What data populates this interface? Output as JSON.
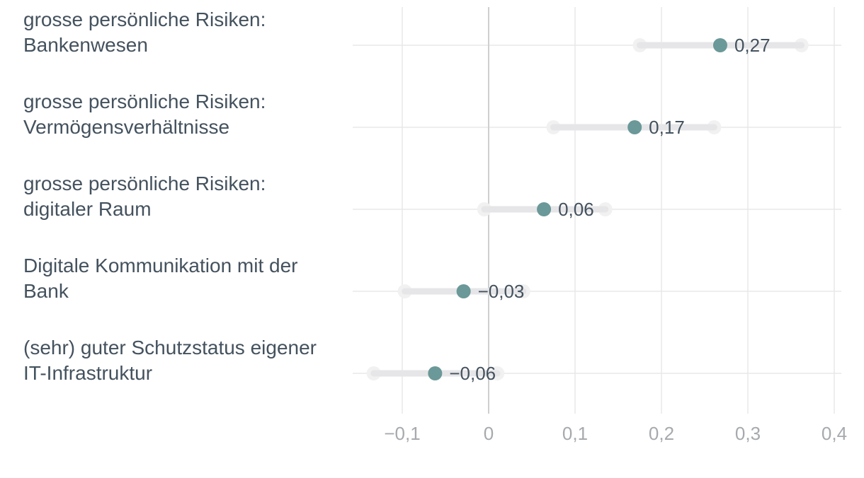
{
  "chart_data": {
    "type": "dot-interval",
    "categories": [
      {
        "label_lines": [
          "grosse persönliche Risiken:",
          "Bankenwesen"
        ],
        "value": 0.268,
        "value_label": "0,27",
        "ci_low": 0.175,
        "ci_high": 0.362
      },
      {
        "label_lines": [
          "grosse persönliche Risiken:",
          "Vermögensverhältnisse"
        ],
        "value": 0.169,
        "value_label": "0,17",
        "ci_low": 0.075,
        "ci_high": 0.261
      },
      {
        "label_lines": [
          "grosse persönliche Risiken:",
          "digitaler Raum"
        ],
        "value": 0.064,
        "value_label": "0,06",
        "ci_low": -0.005,
        "ci_high": 0.135
      },
      {
        "label_lines": [
          "Digitale Kommunikation mit der",
          "Bank"
        ],
        "value": -0.029,
        "value_label": "−0,03",
        "ci_low": -0.097,
        "ci_high": 0.04
      },
      {
        "label_lines": [
          "(sehr) guter Schutzstatus eigener",
          "IT-Infrastruktur"
        ],
        "value": -0.062,
        "value_label": "−0,06",
        "ci_low": -0.133,
        "ci_high": 0.01
      }
    ],
    "xlim": [
      -0.15,
      0.41
    ],
    "xticks": [
      -0.1,
      0,
      0.1,
      0.2,
      0.3,
      0.4
    ],
    "xtick_labels": [
      "−0,1",
      "0",
      "0,1",
      "0,2",
      "0,3",
      "0,4"
    ],
    "zero_line": 0,
    "grid": true,
    "colors": {
      "point": "#6b9898",
      "interval": "#e6e6e8",
      "interval_end": "#f1f1f2",
      "grid": "#e8e8e8",
      "zero_line": "#cfcfcf",
      "label": "#44525e",
      "tick": "#a6aaae"
    }
  }
}
